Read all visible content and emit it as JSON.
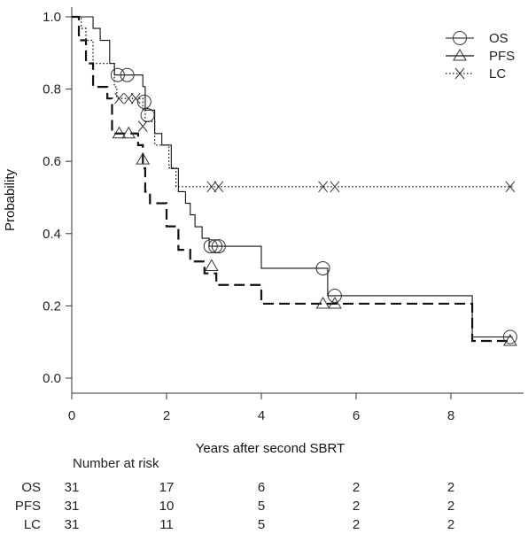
{
  "chart_data": {
    "type": "line",
    "subtype": "kaplan-meier",
    "title": "",
    "xlabel": "Years after second SBRT",
    "ylabel": "Probability",
    "xlim": [
      0,
      9.5
    ],
    "ylim": [
      0,
      1.0
    ],
    "x_ticks": [
      0,
      2,
      4,
      6,
      8
    ],
    "y_ticks": [
      0.0,
      0.2,
      0.4,
      0.6,
      0.8,
      1.0
    ],
    "x_tick_labels": [
      "0",
      "2",
      "4",
      "6",
      "8"
    ],
    "y_tick_labels": [
      "0.0",
      "0.2",
      "0.4",
      "0.6",
      "0.8",
      "1.0"
    ],
    "grid": false,
    "legend_position": "top-right",
    "series": [
      {
        "name": "OS",
        "line_style": "solid",
        "marker": "circle",
        "steps": [
          [
            0,
            1.0
          ],
          [
            0.3,
            1.0
          ],
          [
            0.45,
            0.968
          ],
          [
            0.6,
            0.935
          ],
          [
            0.8,
            0.871
          ],
          [
            0.9,
            0.839
          ],
          [
            1.5,
            0.807
          ],
          [
            1.55,
            0.742
          ],
          [
            1.75,
            0.677
          ],
          [
            1.9,
            0.645
          ],
          [
            2.1,
            0.58
          ],
          [
            2.25,
            0.516
          ],
          [
            2.4,
            0.484
          ],
          [
            2.5,
            0.452
          ],
          [
            2.6,
            0.419
          ],
          [
            2.75,
            0.387
          ],
          [
            2.9,
            0.365
          ],
          [
            4.0,
            0.304
          ],
          [
            5.3,
            0.304
          ],
          [
            5.4,
            0.228
          ],
          [
            8.4,
            0.228
          ],
          [
            8.45,
            0.114
          ],
          [
            9.3,
            0.114
          ]
        ],
        "censored": [
          [
            0.97,
            0.839
          ],
          [
            1.17,
            0.839
          ],
          [
            1.53,
            0.765
          ],
          [
            1.6,
            0.728
          ],
          [
            2.93,
            0.365
          ],
          [
            3.03,
            0.365
          ],
          [
            3.1,
            0.365
          ],
          [
            5.3,
            0.304
          ],
          [
            5.55,
            0.228
          ],
          [
            9.25,
            0.114
          ]
        ]
      },
      {
        "name": "PFS",
        "line_style": "dashed",
        "marker": "triangle",
        "steps": [
          [
            0,
            1.0
          ],
          [
            0.15,
            0.935
          ],
          [
            0.3,
            0.871
          ],
          [
            0.45,
            0.806
          ],
          [
            0.75,
            0.774
          ],
          [
            0.85,
            0.677
          ],
          [
            1.4,
            0.645
          ],
          [
            1.5,
            0.581
          ],
          [
            1.55,
            0.516
          ],
          [
            1.65,
            0.484
          ],
          [
            2.0,
            0.42
          ],
          [
            2.25,
            0.355
          ],
          [
            2.5,
            0.323
          ],
          [
            2.8,
            0.29
          ],
          [
            3.05,
            0.258
          ],
          [
            3.8,
            0.258
          ],
          [
            4.0,
            0.206
          ],
          [
            8.4,
            0.206
          ],
          [
            8.45,
            0.103
          ],
          [
            9.3,
            0.103
          ]
        ],
        "censored": [
          [
            1.0,
            0.677
          ],
          [
            1.2,
            0.677
          ],
          [
            1.5,
            0.605
          ],
          [
            2.95,
            0.31
          ],
          [
            5.3,
            0.206
          ],
          [
            5.55,
            0.206
          ],
          [
            9.25,
            0.103
          ]
        ]
      },
      {
        "name": "LC",
        "line_style": "dotted",
        "marker": "x",
        "steps": [
          [
            0,
            1.0
          ],
          [
            0.2,
            0.968
          ],
          [
            0.3,
            0.935
          ],
          [
            0.45,
            0.871
          ],
          [
            0.9,
            0.806
          ],
          [
            0.95,
            0.774
          ],
          [
            1.5,
            0.742
          ],
          [
            1.55,
            0.71
          ],
          [
            1.75,
            0.645
          ],
          [
            2.05,
            0.582
          ],
          [
            2.2,
            0.53
          ],
          [
            9.3,
            0.53
          ]
        ],
        "censored": [
          [
            1.0,
            0.774
          ],
          [
            1.2,
            0.774
          ],
          [
            1.35,
            0.774
          ],
          [
            1.5,
            0.697
          ],
          [
            2.95,
            0.53
          ],
          [
            3.1,
            0.53
          ],
          [
            5.3,
            0.53
          ],
          [
            5.55,
            0.53
          ],
          [
            9.25,
            0.53
          ]
        ]
      }
    ]
  },
  "risk_table": {
    "title": "Number at risk",
    "rows": [
      {
        "label": "OS",
        "values": [
          "31",
          "17",
          "6",
          "2",
          "2"
        ]
      },
      {
        "label": "PFS",
        "values": [
          "31",
          "10",
          "5",
          "2",
          "2"
        ]
      },
      {
        "label": "LC",
        "values": [
          "31",
          "11",
          "5",
          "2",
          "2"
        ]
      }
    ]
  }
}
